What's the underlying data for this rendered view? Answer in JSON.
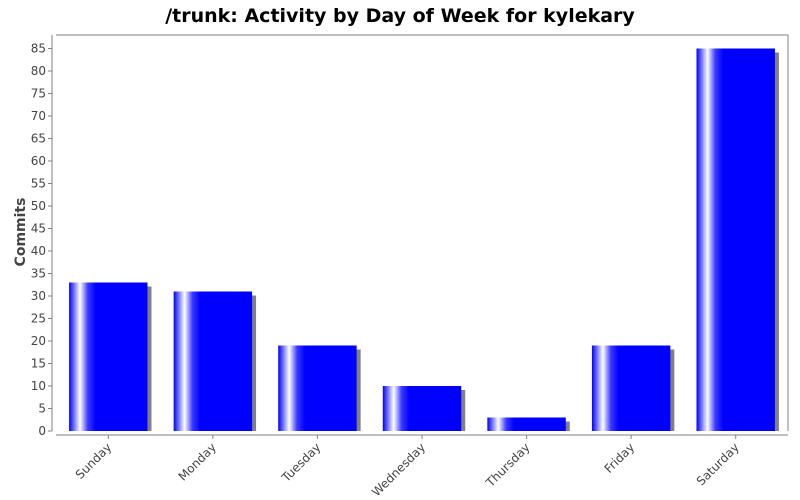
{
  "chart_data": {
    "type": "bar",
    "title": "/trunk: Activity by Day of Week for kylekary",
    "xlabel": "",
    "ylabel": "Commits",
    "categories": [
      "Sunday",
      "Monday",
      "Tuesday",
      "Wednesday",
      "Thursday",
      "Friday",
      "Saturday"
    ],
    "values": [
      33,
      31,
      19,
      10,
      3,
      19,
      85
    ],
    "ylim": [
      0,
      88
    ],
    "yticks": [
      0,
      5,
      10,
      15,
      20,
      25,
      30,
      35,
      40,
      45,
      50,
      55,
      60,
      65,
      70,
      75,
      80,
      85
    ],
    "grid": false,
    "legend": "none",
    "colors": {
      "bar": "#0000ff",
      "bar_highlight": "#ffffff",
      "shadow": "#808080",
      "axis": "#808080",
      "text": "#444444"
    }
  }
}
